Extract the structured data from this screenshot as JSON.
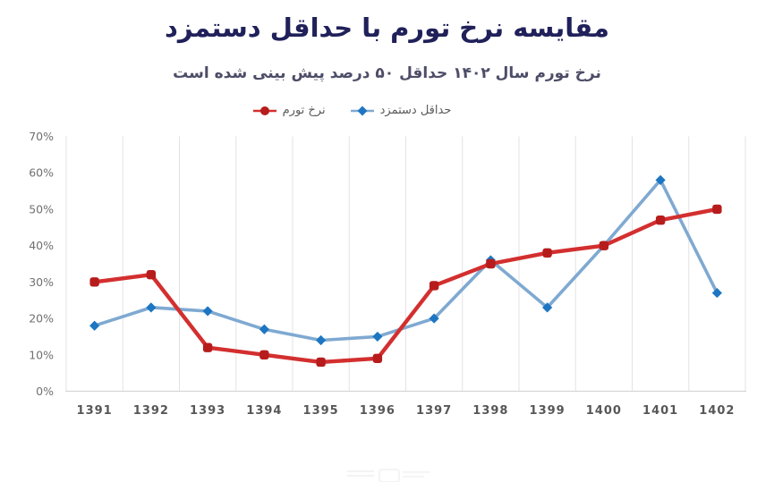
{
  "header": {
    "title": "مقایسه نرخ تورم با حداقل دستمزد",
    "subtitle": "نرخ تورم سال ۱۴۰۲ حداقل ۵۰ درصد پیش بینی شده است"
  },
  "legend": {
    "items": [
      {
        "label": "نرخ تورم",
        "series": "نرخ تورم"
      },
      {
        "label": "حداقل دستمزد",
        "series": "حداقل دستمزد"
      }
    ]
  },
  "chart_data": {
    "type": "line",
    "title": "مقایسه نرخ تورم با حداقل دستمزد",
    "subtitle": "نرخ تورم سال ۱۴۰۲ حداقل ۵۰ درصد پیش بینی شده است",
    "categories": [
      "1391",
      "1392",
      "1393",
      "1394",
      "1395",
      "1396",
      "1397",
      "1398",
      "1399",
      "1400",
      "1401",
      "1402"
    ],
    "series": [
      {
        "name": "حداقل دستمزد",
        "values": [
          18,
          23,
          22,
          17,
          14,
          15,
          20,
          36,
          23,
          40,
          58,
          27
        ],
        "line_color": "#7fa9d1",
        "marker_color": "#1d76c2",
        "marker": "diamond",
        "line_width": 3.6
      },
      {
        "name": "نرخ تورم",
        "values": [
          30,
          32,
          12,
          10,
          8,
          9,
          29,
          35,
          38,
          40,
          47,
          50
        ],
        "line_color": "#d32f2f",
        "marker_color": "#b71c1c",
        "marker": "square",
        "line_width": 4.4
      }
    ],
    "xlabel": "",
    "ylabel": "",
    "ylim": [
      0,
      70
    ],
    "ytick_step": 10,
    "ytick_suffix": "%",
    "grid": "vertical-only",
    "legend_position": "top-center"
  },
  "colors": {
    "title": "#20205a",
    "subtitle": "#4d4d68",
    "grid": "#e3e3e3",
    "axis_line": "#d6d6d6",
    "y_tick_text": "#707070",
    "x_tick_text": "#575757",
    "legend_text": "#5a5a5a",
    "background": "#ffffff"
  }
}
